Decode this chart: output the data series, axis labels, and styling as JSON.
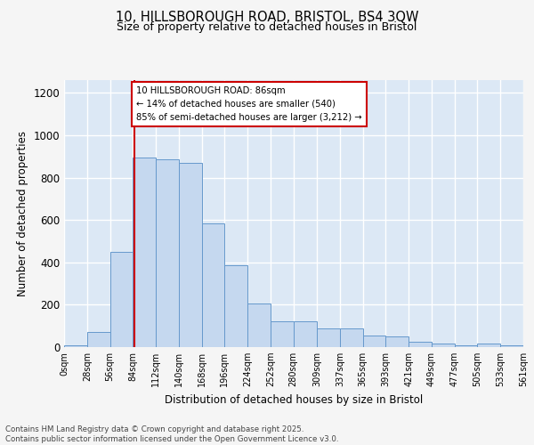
{
  "title1": "10, HILLSBOROUGH ROAD, BRISTOL, BS4 3QW",
  "title2": "Size of property relative to detached houses in Bristol",
  "xlabel": "Distribution of detached houses by size in Bristol",
  "ylabel": "Number of detached properties",
  "bar_edges": [
    0,
    28,
    56,
    84,
    112,
    140,
    168,
    196,
    224,
    252,
    280,
    309,
    337,
    365,
    393,
    421,
    449,
    477,
    505,
    533,
    561
  ],
  "bar_heights": [
    10,
    70,
    450,
    895,
    885,
    870,
    585,
    385,
    205,
    120,
    120,
    90,
    90,
    55,
    50,
    25,
    15,
    10,
    15,
    10,
    8
  ],
  "bar_color": "#c5d8ef",
  "bar_edge_color": "#6699cc",
  "vline_x": 86,
  "vline_color": "#cc0000",
  "annotation_text": "10 HILLSBOROUGH ROAD: 86sqm\n← 14% of detached houses are smaller (540)\n85% of semi-detached houses are larger (3,212) →",
  "annotation_box_color": "#ffffff",
  "annotation_box_edge": "#cc0000",
  "ylim": [
    0,
    1260
  ],
  "yticks": [
    0,
    200,
    400,
    600,
    800,
    1000,
    1200
  ],
  "xtick_labels": [
    "0sqm",
    "28sqm",
    "56sqm",
    "84sqm",
    "112sqm",
    "140sqm",
    "168sqm",
    "196sqm",
    "224sqm",
    "252sqm",
    "280sqm",
    "309sqm",
    "337sqm",
    "365sqm",
    "393sqm",
    "421sqm",
    "449sqm",
    "477sqm",
    "505sqm",
    "533sqm",
    "561sqm"
  ],
  "background_color": "#dce8f5",
  "grid_color": "#ffffff",
  "footer": "Contains HM Land Registry data © Crown copyright and database right 2025.\nContains public sector information licensed under the Open Government Licence v3.0.",
  "fig_bg": "#f5f5f5"
}
